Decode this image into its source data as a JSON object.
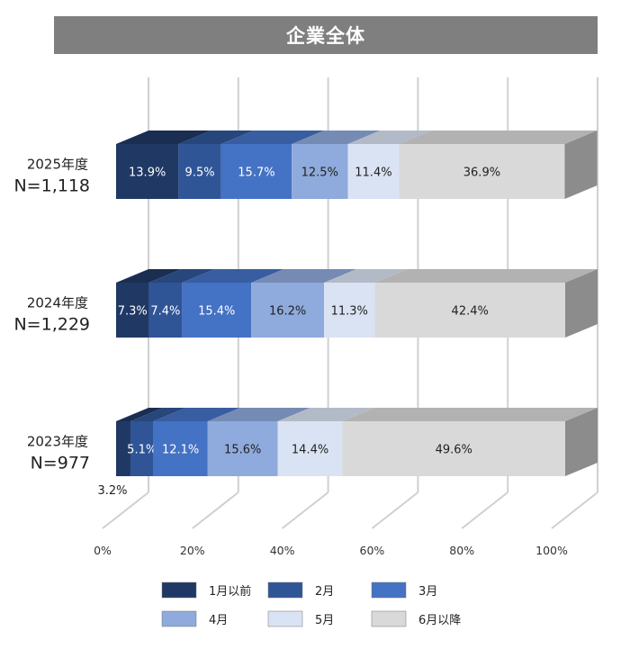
{
  "chart_data": {
    "type": "bar",
    "orientation": "horizontal",
    "stacked": "100%",
    "three_d": true,
    "title": "企業全体",
    "categories": [
      {
        "year": "2025年度",
        "n": "N=1,118"
      },
      {
        "year": "2024年度",
        "n": "N=1,229"
      },
      {
        "year": "2023年度",
        "n": "N=977"
      }
    ],
    "series": [
      {
        "name": "1月以前",
        "color": "#203864",
        "values": [
          13.9,
          7.3,
          3.2
        ],
        "labels": [
          "13.9%",
          "7.3%",
          "3.2%"
        ]
      },
      {
        "name": "2月",
        "color": "#2f5597",
        "values": [
          9.5,
          7.4,
          5.1
        ],
        "labels": [
          "9.5%",
          "7.4%",
          "5.1%"
        ]
      },
      {
        "name": "3月",
        "color": "#4472c4",
        "values": [
          15.7,
          15.4,
          12.1
        ],
        "labels": [
          "15.7%",
          "15.4%",
          "12.1%"
        ]
      },
      {
        "name": "4月",
        "color": "#8faadc",
        "values": [
          12.5,
          16.2,
          15.6
        ],
        "labels": [
          "12.5%",
          "16.2%",
          "15.6%"
        ]
      },
      {
        "name": "5月",
        "color": "#dae3f3",
        "values": [
          11.4,
          11.3,
          14.4
        ],
        "labels": [
          "11.4%",
          "11.3%",
          "14.4%"
        ]
      },
      {
        "name": "6月以降",
        "color": "#d9d9d9",
        "values": [
          36.9,
          42.4,
          49.6
        ],
        "labels": [
          "36.9%",
          "42.4%",
          "49.6%"
        ]
      }
    ],
    "x_ticks": [
      "0%",
      "20%",
      "40%",
      "60%",
      "80%",
      "100%"
    ],
    "xlim": [
      0,
      100
    ],
    "grid": true,
    "legend_position": "bottom"
  }
}
